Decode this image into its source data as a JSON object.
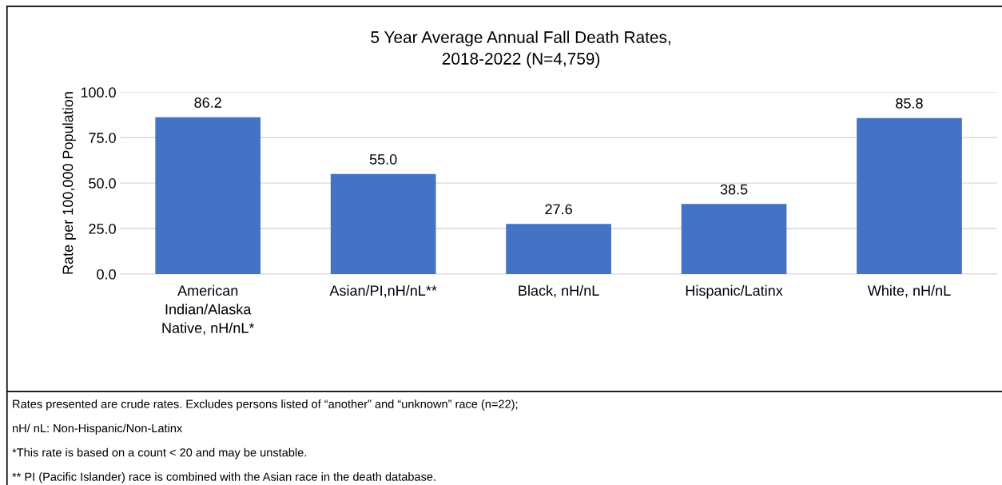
{
  "chart_data": {
    "type": "bar",
    "title": "5 Year Average Annual Fall Death Rates,\n2018-2022 (N=4,759)",
    "ylabel": "Rate per 100,000 Population",
    "categories": [
      "American\nIndian/Alaska\nNative, nH/nL*",
      "Asian/PI,nH/nL**",
      "Black, nH/nL",
      "Hispanic/Latinx",
      "White, nH/nL"
    ],
    "values": [
      86.2,
      55.0,
      27.6,
      38.5,
      85.8
    ],
    "color": "#4472c4",
    "ylim": [
      0,
      100
    ],
    "yticks": [
      {
        "value": 0,
        "label": "0.0"
      },
      {
        "value": 25,
        "label": "25.0"
      },
      {
        "value": 50,
        "label": "50.0"
      },
      {
        "value": 75,
        "label": "75.0"
      },
      {
        "value": 100,
        "label": "100.0"
      }
    ],
    "grid": "y",
    "data_labels": true,
    "value_labels": [
      "86.2",
      "55.0",
      "27.6",
      "38.5",
      "85.8"
    ],
    "annotations": [
      "Rates presented are crude rates. Excludes persons listed of “another” and “unknown” race (n=22);",
      "nH/ nL: Non-Hispanic/Non-Latinx",
      "*This rate is based on a count < 20 and may be unstable.",
      "** PI (Pacific Islander) race is combined with the Asian race in the death database."
    ]
  }
}
